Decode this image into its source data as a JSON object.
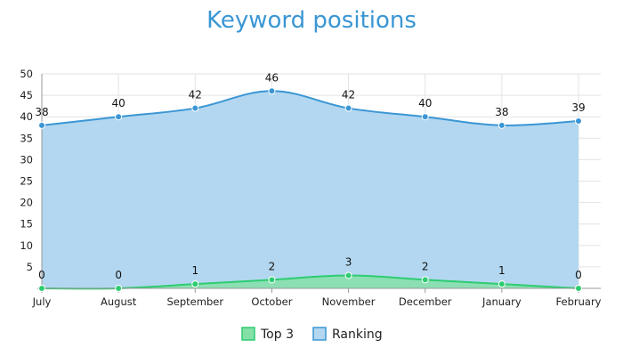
{
  "chart_data": {
    "type": "area",
    "title": "Keyword positions",
    "categories": [
      "July",
      "August",
      "September",
      "October",
      "November",
      "December",
      "January",
      "February"
    ],
    "ylim": [
      0,
      50
    ],
    "yticks": [
      5,
      10,
      15,
      20,
      25,
      30,
      35,
      40,
      45,
      50
    ],
    "grid": true,
    "legend_position": "bottom",
    "series": [
      {
        "name": "Top 3",
        "values": [
          0,
          0,
          1,
          2,
          3,
          2,
          1,
          0
        ],
        "color": "#2ecc71",
        "fill": "#85e0a8"
      },
      {
        "name": "Ranking",
        "values": [
          38,
          40,
          42,
          46,
          42,
          40,
          38,
          39
        ],
        "color": "#3a96d4",
        "fill": "#b3d7f0"
      }
    ]
  }
}
